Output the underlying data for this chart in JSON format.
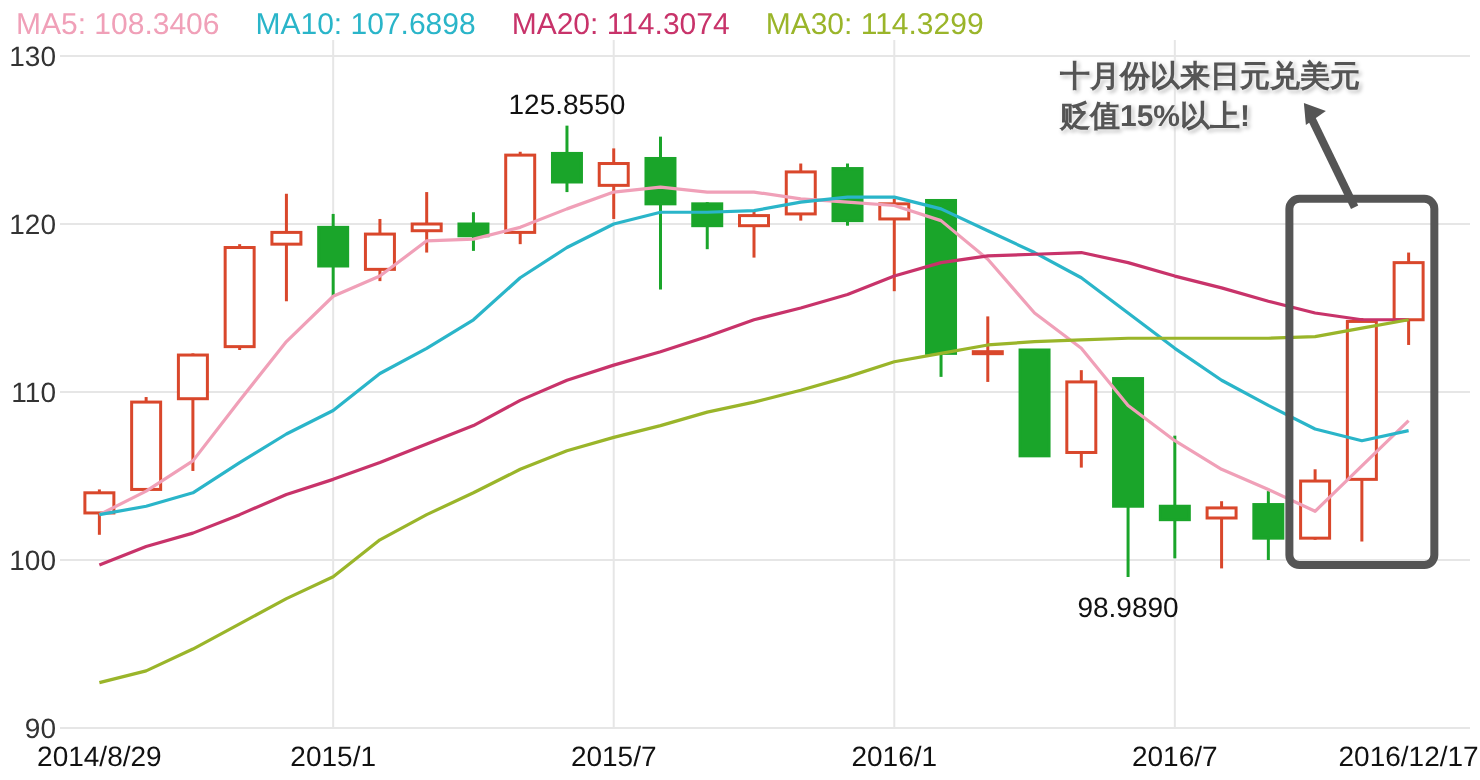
{
  "chart_data": {
    "type": "candlestick",
    "categories": [
      "2014/8/29",
      null,
      null,
      null,
      null,
      "2015/1",
      null,
      null,
      null,
      null,
      null,
      "2015/7",
      null,
      null,
      null,
      null,
      null,
      "2016/1",
      null,
      null,
      null,
      null,
      null,
      "2016/7",
      null,
      null,
      null,
      null,
      "2016/12/17"
    ],
    "ohlc": [
      [
        102.8,
        104.2,
        101.5,
        104.0
      ],
      [
        104.2,
        109.7,
        104.1,
        109.4
      ],
      [
        109.6,
        112.3,
        105.3,
        112.2
      ],
      [
        112.7,
        118.8,
        112.5,
        118.6
      ],
      [
        118.8,
        121.8,
        115.4,
        119.5
      ],
      [
        119.8,
        120.6,
        115.7,
        117.5
      ],
      [
        117.3,
        120.3,
        116.6,
        119.4
      ],
      [
        119.6,
        121.9,
        118.3,
        120.0
      ],
      [
        120.0,
        120.7,
        118.4,
        119.3
      ],
      [
        119.5,
        124.3,
        118.8,
        124.1
      ],
      [
        124.2,
        125.855,
        121.9,
        122.5
      ],
      [
        122.3,
        124.5,
        120.3,
        123.6
      ],
      [
        123.9,
        125.2,
        116.1,
        121.2
      ],
      [
        121.2,
        121.3,
        118.5,
        119.9
      ],
      [
        119.9,
        120.8,
        118.0,
        120.5
      ],
      [
        120.6,
        123.6,
        120.2,
        123.1
      ],
      [
        123.3,
        123.6,
        119.9,
        120.2
      ],
      [
        120.3,
        121.5,
        116.0,
        121.2
      ],
      [
        121.4,
        121.4,
        110.9,
        112.3
      ],
      [
        112.3,
        114.5,
        110.6,
        112.4
      ],
      [
        112.5,
        112.5,
        106.2,
        106.2
      ],
      [
        106.4,
        111.3,
        105.5,
        110.6
      ],
      [
        110.8,
        110.8,
        98.989,
        103.2
      ],
      [
        103.2,
        107.4,
        100.1,
        102.4
      ],
      [
        102.5,
        103.5,
        99.5,
        103.1
      ],
      [
        103.3,
        104.1,
        100.0,
        101.3
      ],
      [
        101.3,
        105.4,
        101.2,
        104.7
      ],
      [
        104.8,
        114.4,
        101.1,
        114.2
      ],
      [
        114.3,
        118.3,
        112.8,
        117.7
      ]
    ],
    "colors": [
      "#d9472b",
      "#d9472b",
      "#d9472b",
      "#d9472b",
      "#d9472b",
      "#1aa52a",
      "#d9472b",
      "#d9472b",
      "#1aa52a",
      "#d9472b",
      "#1aa52a",
      "#d9472b",
      "#1aa52a",
      "#1aa52a",
      "#d9472b",
      "#d9472b",
      "#1aa52a",
      "#d9472b",
      "#1aa52a",
      "#d9472b",
      "#1aa52a",
      "#d9472b",
      "#1aa52a",
      "#1aa52a",
      "#d9472b",
      "#1aa52a",
      "#d9472b",
      "#d9472b",
      "#d9472b"
    ],
    "series": [
      {
        "type": "line",
        "name": "MA5: 108.3406",
        "color": "#f0a0b8",
        "values": [
          102.7,
          104.1,
          105.9,
          109.5,
          113.0,
          115.7,
          116.9,
          119.0,
          119.1,
          119.8,
          120.9,
          121.9,
          122.2,
          121.9,
          121.9,
          121.5,
          121.3,
          121.1,
          120.2,
          117.9,
          114.7,
          112.6,
          109.2,
          107.1,
          105.4,
          104.2,
          102.9,
          105.6,
          108.3
        ]
      },
      {
        "type": "line",
        "name": "MA10: 107.6898",
        "color": "#2ab5c9",
        "values": [
          102.7,
          103.2,
          104.0,
          105.8,
          107.5,
          108.9,
          111.1,
          112.6,
          114.3,
          116.8,
          118.6,
          120.0,
          120.7,
          120.7,
          120.8,
          121.3,
          121.6,
          121.6,
          120.9,
          119.6,
          118.3,
          116.8,
          114.7,
          112.6,
          110.7,
          109.2,
          107.8,
          107.1,
          107.7
        ]
      },
      {
        "type": "line",
        "name": "MA20: 114.3074",
        "color": "#c8336a",
        "values": [
          99.7,
          100.8,
          101.6,
          102.7,
          103.9,
          104.8,
          105.8,
          106.9,
          108.0,
          109.5,
          110.7,
          111.6,
          112.4,
          113.3,
          114.3,
          115.0,
          115.8,
          116.9,
          117.7,
          118.1,
          118.2,
          118.3,
          117.7,
          116.9,
          116.2,
          115.4,
          114.7,
          114.3,
          114.3
        ]
      },
      {
        "type": "line",
        "name": "MA30: 114.3299",
        "color": "#9ab52a",
        "values": [
          92.7,
          93.4,
          94.7,
          96.2,
          97.7,
          99.0,
          101.2,
          102.7,
          104.0,
          105.4,
          106.5,
          107.3,
          108.0,
          108.8,
          109.4,
          110.1,
          110.9,
          111.8,
          112.3,
          112.8,
          113.0,
          113.1,
          113.2,
          113.2,
          113.2,
          113.2,
          113.3,
          113.8,
          114.3
        ]
      }
    ],
    "ylim": [
      90,
      130
    ],
    "yticks": [
      90,
      100,
      110,
      120,
      130
    ],
    "grid": true,
    "legend": "top",
    "annotations": [
      {
        "text": "125.8550",
        "y": 125.855
      },
      {
        "text": "98.9890",
        "y": 98.989
      },
      "十月份以来日元兑美元贬值15%以上!"
    ]
  }
}
